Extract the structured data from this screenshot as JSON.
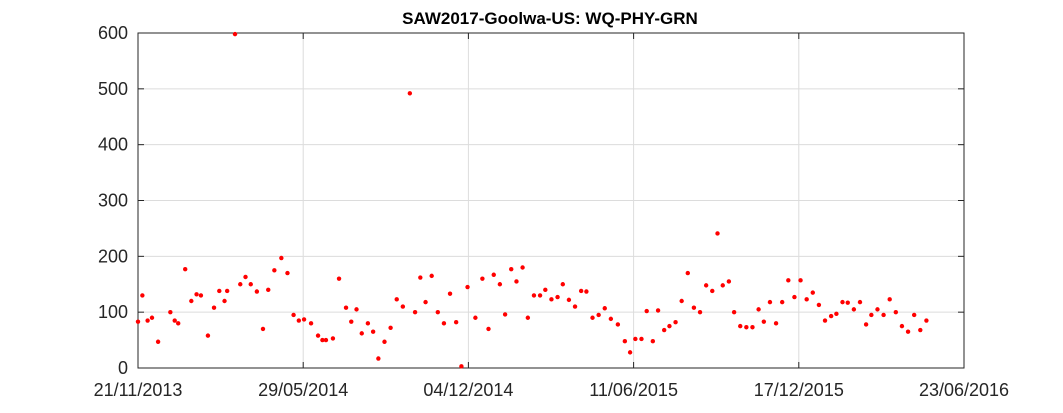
{
  "chart_data": {
    "type": "scatter",
    "title": "SAW2017-Goolwa-US: WQ-PHY-GRN",
    "xlabel": "",
    "ylabel": "",
    "x_axis": {
      "type": "date",
      "range": [
        "2013-11-21",
        "2016-06-23"
      ],
      "ticks": [
        "2013-11-21",
        "2014-05-29",
        "2014-12-04",
        "2015-06-11",
        "2015-12-17",
        "2016-06-23"
      ],
      "tick_labels": [
        "21/11/2013",
        "29/05/2014",
        "04/12/2014",
        "11/06/2015",
        "17/12/2015",
        "23/06/2016"
      ]
    },
    "y_axis": {
      "range": [
        0,
        600
      ],
      "ticks": [
        0,
        100,
        200,
        300,
        400,
        500,
        600
      ],
      "tick_labels": [
        "0",
        "100",
        "200",
        "300",
        "400",
        "500",
        "600"
      ]
    },
    "grid": true,
    "marker_color": "#ff0000",
    "series": [
      {
        "points": [
          [
            "2013-11-21",
            83
          ],
          [
            "2013-11-26",
            130
          ],
          [
            "2013-12-02",
            85
          ],
          [
            "2013-12-07",
            90
          ],
          [
            "2013-12-14",
            47
          ],
          [
            "2013-12-28",
            100
          ],
          [
            "2014-01-02",
            85
          ],
          [
            "2014-01-06",
            80
          ],
          [
            "2014-01-14",
            177
          ],
          [
            "2014-01-21",
            120
          ],
          [
            "2014-01-27",
            132
          ],
          [
            "2014-02-01",
            130
          ],
          [
            "2014-02-09",
            58
          ],
          [
            "2014-02-16",
            108
          ],
          [
            "2014-02-22",
            138
          ],
          [
            "2014-02-28",
            120
          ],
          [
            "2014-03-03",
            138
          ],
          [
            "2014-03-12",
            598
          ],
          [
            "2014-03-18",
            150
          ],
          [
            "2014-03-24",
            163
          ],
          [
            "2014-03-30",
            150
          ],
          [
            "2014-04-06",
            137
          ],
          [
            "2014-04-13",
            70
          ],
          [
            "2014-04-19",
            140
          ],
          [
            "2014-04-26",
            175
          ],
          [
            "2014-05-04",
            197
          ],
          [
            "2014-05-11",
            170
          ],
          [
            "2014-05-18",
            95
          ],
          [
            "2014-05-24",
            85
          ],
          [
            "2014-05-30",
            87
          ],
          [
            "2014-06-07",
            80
          ],
          [
            "2014-06-15",
            58
          ],
          [
            "2014-06-20",
            50
          ],
          [
            "2014-06-24",
            50
          ],
          [
            "2014-07-02",
            53
          ],
          [
            "2014-07-09",
            160
          ],
          [
            "2014-07-17",
            108
          ],
          [
            "2014-07-23",
            83
          ],
          [
            "2014-07-29",
            105
          ],
          [
            "2014-08-04",
            62
          ],
          [
            "2014-08-11",
            80
          ],
          [
            "2014-08-17",
            65
          ],
          [
            "2014-08-23",
            17
          ],
          [
            "2014-08-30",
            47
          ],
          [
            "2014-09-06",
            72
          ],
          [
            "2014-09-13",
            123
          ],
          [
            "2014-09-20",
            110
          ],
          [
            "2014-09-28",
            492
          ],
          [
            "2014-10-04",
            100
          ],
          [
            "2014-10-10",
            162
          ],
          [
            "2014-10-16",
            118
          ],
          [
            "2014-10-23",
            165
          ],
          [
            "2014-10-30",
            100
          ],
          [
            "2014-11-06",
            80
          ],
          [
            "2014-11-13",
            133
          ],
          [
            "2014-11-20",
            82
          ],
          [
            "2014-11-26",
            3
          ],
          [
            "2014-12-03",
            145
          ],
          [
            "2014-12-12",
            90
          ],
          [
            "2014-12-20",
            160
          ],
          [
            "2014-12-27",
            70
          ],
          [
            "2015-01-02",
            167
          ],
          [
            "2015-01-09",
            150
          ],
          [
            "2015-01-15",
            96
          ],
          [
            "2015-01-22",
            177
          ],
          [
            "2015-01-28",
            155
          ],
          [
            "2015-02-04",
            180
          ],
          [
            "2015-02-10",
            90
          ],
          [
            "2015-02-17",
            130
          ],
          [
            "2015-02-24",
            130
          ],
          [
            "2015-03-02",
            140
          ],
          [
            "2015-03-09",
            123
          ],
          [
            "2015-03-16",
            127
          ],
          [
            "2015-03-22",
            150
          ],
          [
            "2015-03-29",
            122
          ],
          [
            "2015-04-05",
            110
          ],
          [
            "2015-04-12",
            138
          ],
          [
            "2015-04-18",
            137
          ],
          [
            "2015-04-25",
            90
          ],
          [
            "2015-05-02",
            95
          ],
          [
            "2015-05-09",
            107
          ],
          [
            "2015-05-16",
            88
          ],
          [
            "2015-05-24",
            78
          ],
          [
            "2015-06-01",
            48
          ],
          [
            "2015-06-07",
            28
          ],
          [
            "2015-06-13",
            52
          ],
          [
            "2015-06-20",
            52
          ],
          [
            "2015-06-26",
            102
          ],
          [
            "2015-07-03",
            48
          ],
          [
            "2015-07-09",
            103
          ],
          [
            "2015-07-16",
            68
          ],
          [
            "2015-07-22",
            75
          ],
          [
            "2015-07-29",
            82
          ],
          [
            "2015-08-05",
            120
          ],
          [
            "2015-08-12",
            170
          ],
          [
            "2015-08-19",
            108
          ],
          [
            "2015-08-26",
            100
          ],
          [
            "2015-09-02",
            148
          ],
          [
            "2015-09-09",
            138
          ],
          [
            "2015-09-15",
            241
          ],
          [
            "2015-09-21",
            148
          ],
          [
            "2015-09-28",
            155
          ],
          [
            "2015-10-04",
            100
          ],
          [
            "2015-10-11",
            75
          ],
          [
            "2015-10-18",
            73
          ],
          [
            "2015-10-25",
            73
          ],
          [
            "2015-11-01",
            105
          ],
          [
            "2015-11-07",
            83
          ],
          [
            "2015-11-14",
            118
          ],
          [
            "2015-11-21",
            80
          ],
          [
            "2015-11-28",
            118
          ],
          [
            "2015-12-05",
            157
          ],
          [
            "2015-12-12",
            127
          ],
          [
            "2015-12-19",
            157
          ],
          [
            "2015-12-26",
            123
          ],
          [
            "2016-01-02",
            135
          ],
          [
            "2016-01-09",
            113
          ],
          [
            "2016-01-16",
            85
          ],
          [
            "2016-01-23",
            93
          ],
          [
            "2016-01-29",
            97
          ],
          [
            "2016-02-05",
            118
          ],
          [
            "2016-02-11",
            117
          ],
          [
            "2016-02-18",
            105
          ],
          [
            "2016-02-25",
            118
          ],
          [
            "2016-03-03",
            78
          ],
          [
            "2016-03-09",
            95
          ],
          [
            "2016-03-16",
            105
          ],
          [
            "2016-03-23",
            95
          ],
          [
            "2016-03-30",
            123
          ],
          [
            "2016-04-06",
            100
          ],
          [
            "2016-04-13",
            75
          ],
          [
            "2016-04-20",
            65
          ],
          [
            "2016-04-27",
            95
          ],
          [
            "2016-05-04",
            68
          ],
          [
            "2016-05-11",
            85
          ]
        ]
      }
    ]
  }
}
